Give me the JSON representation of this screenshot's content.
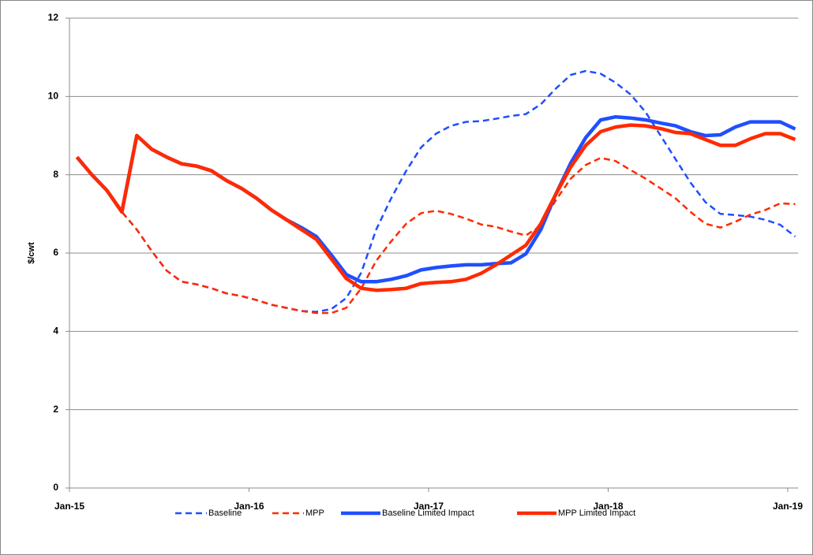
{
  "chart_data": {
    "type": "line",
    "y_label": "$/cwt",
    "categories": [
      "Jan-15",
      null,
      null,
      null,
      null,
      null,
      null,
      null,
      null,
      null,
      null,
      null,
      "Jan-16",
      null,
      null,
      null,
      null,
      null,
      null,
      null,
      null,
      null,
      null,
      null,
      "Jan-17",
      null,
      null,
      null,
      null,
      null,
      null,
      null,
      null,
      null,
      null,
      null,
      "Jan-18",
      null,
      null,
      null,
      null,
      null,
      null,
      null,
      null,
      null,
      null,
      null,
      "Jan-19"
    ],
    "ylim": [
      0,
      12
    ],
    "yticks": [
      0,
      2,
      4,
      6,
      8,
      10,
      12
    ],
    "grid": true,
    "legend": "bottom",
    "series": [
      {
        "name": "Baseline",
        "color": "#1f4fff",
        "style": "dashed",
        "values": [
          8.45,
          8.0,
          7.6,
          7.05,
          6.6,
          6.05,
          5.55,
          5.27,
          5.2,
          5.1,
          4.97,
          4.9,
          4.8,
          4.68,
          4.6,
          4.52,
          4.5,
          4.57,
          4.85,
          5.5,
          6.6,
          7.4,
          8.1,
          8.7,
          9.05,
          9.25,
          9.35,
          9.37,
          9.43,
          9.5,
          9.55,
          9.8,
          10.2,
          10.55,
          10.65,
          10.58,
          10.35,
          10.05,
          9.6,
          9.0,
          8.4,
          7.8,
          7.3,
          7.0,
          6.97,
          6.93,
          6.85,
          6.72,
          6.42
        ]
      },
      {
        "name": "MPP",
        "color": "#ff2a00",
        "style": "dashed",
        "values": [
          8.45,
          8.0,
          7.6,
          7.05,
          6.6,
          6.05,
          5.55,
          5.27,
          5.2,
          5.1,
          4.97,
          4.9,
          4.8,
          4.68,
          4.6,
          4.52,
          4.47,
          4.47,
          4.6,
          5.1,
          5.8,
          6.3,
          6.75,
          7.02,
          7.08,
          7.0,
          6.88,
          6.73,
          6.67,
          6.55,
          6.45,
          6.7,
          7.35,
          7.9,
          8.25,
          8.43,
          8.35,
          8.12,
          7.9,
          7.65,
          7.4,
          7.05,
          6.75,
          6.65,
          6.8,
          6.98,
          7.1,
          7.27,
          7.25
        ]
      },
      {
        "name": "Baseline Limited Impact",
        "color": "#1f4fff",
        "style": "solid",
        "values": [
          8.45,
          8.0,
          7.6,
          7.05,
          9.0,
          8.65,
          8.45,
          8.28,
          8.22,
          8.1,
          7.85,
          7.65,
          7.4,
          7.1,
          6.85,
          6.65,
          6.42,
          5.95,
          5.45,
          5.27,
          5.27,
          5.33,
          5.42,
          5.57,
          5.63,
          5.67,
          5.7,
          5.7,
          5.73,
          5.75,
          5.98,
          6.6,
          7.5,
          8.3,
          8.95,
          9.4,
          9.48,
          9.45,
          9.4,
          9.32,
          9.25,
          9.1,
          9.0,
          9.02,
          9.22,
          9.35,
          9.35,
          9.35,
          9.17
        ]
      },
      {
        "name": "MPP Limited Impact",
        "color": "#ff2a00",
        "style": "solid",
        "values": [
          8.45,
          8.0,
          7.6,
          7.05,
          9.0,
          8.65,
          8.45,
          8.28,
          8.22,
          8.1,
          7.85,
          7.65,
          7.4,
          7.1,
          6.85,
          6.6,
          6.35,
          5.85,
          5.35,
          5.1,
          5.05,
          5.07,
          5.1,
          5.22,
          5.25,
          5.27,
          5.33,
          5.48,
          5.7,
          5.95,
          6.2,
          6.75,
          7.5,
          8.2,
          8.75,
          9.1,
          9.22,
          9.27,
          9.25,
          9.18,
          9.08,
          9.05,
          8.9,
          8.75,
          8.75,
          8.92,
          9.05,
          9.05,
          8.9
        ]
      }
    ]
  }
}
